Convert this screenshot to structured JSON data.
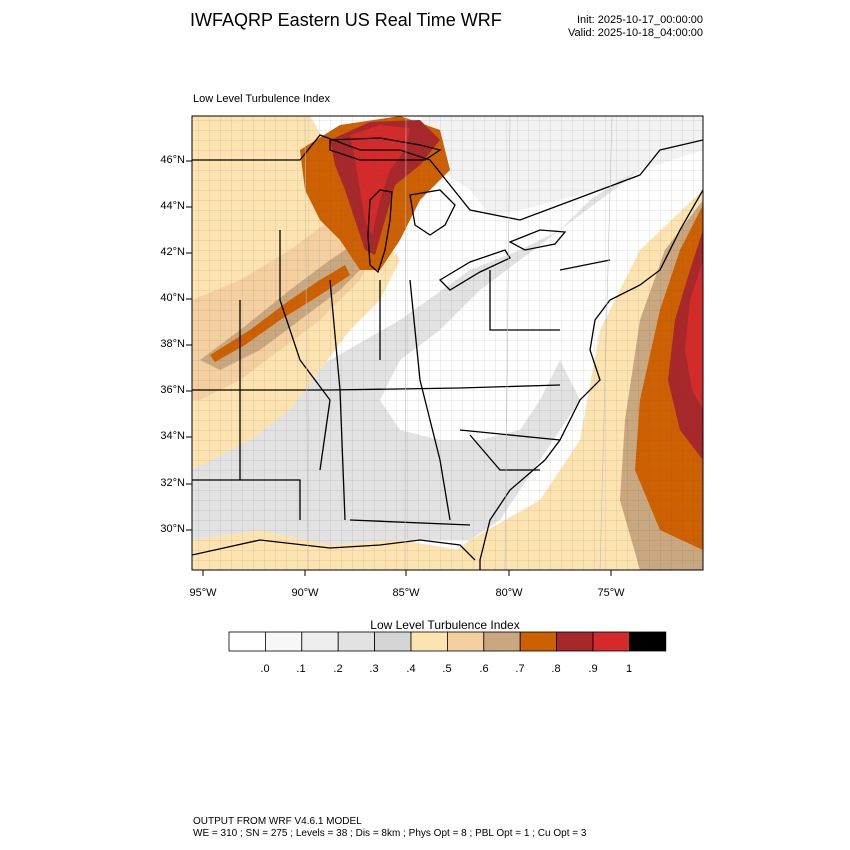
{
  "header": {
    "title": "IWFAQRP Eastern US Real Time WRF",
    "init": "Init: 2025-10-17_00:00:00",
    "valid": "Valid: 2025-10-18_04:00:00"
  },
  "map": {
    "panel_title": "Low Level Turbulence Index",
    "lat_labels": [
      "46°N",
      "44°N",
      "42°N",
      "40°N",
      "38°N",
      "36°N",
      "34°N",
      "32°N",
      "30°N"
    ],
    "lon_labels": [
      "95°W",
      "90°W",
      "85°W",
      "80°W",
      "75°W"
    ],
    "field": "Low Level Turbulence Index",
    "high_regions": [
      "Upper Peninsula of Michigan",
      "Lake Michigan",
      "Atlantic offshore of New Jersey and Delmarva"
    ]
  },
  "colorbar": {
    "title": "Low Level Turbulence Index",
    "tick_labels": [
      ".0",
      ".1",
      ".2",
      ".3",
      ".4",
      ".5",
      ".6",
      ".7",
      ".8",
      ".9",
      "1"
    ],
    "colors": [
      "#ffffff",
      "#f7f7f7",
      "#eeeeee",
      "#e2e2e2",
      "#d5d5d5",
      "#fde3b0",
      "#f4d0a0",
      "#c9a77f",
      "#cd6000",
      "#a8272a",
      "#d42a2a",
      "#000000"
    ]
  },
  "footer": {
    "line1": "OUTPUT FROM WRF V4.6.1 MODEL",
    "line2": "WE = 310 ; SN = 275 ; Levels = 38 ; Dis = 8km ; Phys Opt = 8 ; PBL Opt = 1 ; Cu Opt = 3"
  }
}
